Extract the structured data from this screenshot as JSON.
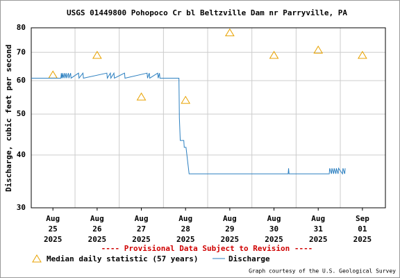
{
  "chart_data": {
    "type": "line",
    "title": "USGS 01449800 Pohopoco Cr bl Beltzville Dam nr Parryville, PA",
    "y_label": "Discharge, cubic feet per second",
    "annotation": "---- Provisional Data Subject to Revision ----",
    "credit": "Graph courtesy of the U.S. Geological Survey",
    "log_y": true,
    "grid": true,
    "ylim": [
      30,
      80
    ],
    "yticks": [
      30,
      40,
      50,
      60,
      70,
      80
    ],
    "xlim": [
      -0.49,
      7.52
    ],
    "xticks": [
      {
        "value": 0,
        "label": "Aug 25 2025"
      },
      {
        "value": 1,
        "label": "Aug 26 2025"
      },
      {
        "value": 2,
        "label": "Aug 27 2025"
      },
      {
        "value": 3,
        "label": "Aug 28 2025"
      },
      {
        "value": 4,
        "label": "Aug 29 2025"
      },
      {
        "value": 5,
        "label": "Aug 30 2025"
      },
      {
        "value": 6,
        "label": "Aug 31 2025"
      },
      {
        "value": 7,
        "label": "Sep 01 2025"
      }
    ],
    "series": [
      {
        "name": "Median daily statistic (57 years)",
        "color": "#e8a200",
        "kind": "triangle",
        "x": [
          0,
          1,
          2,
          3,
          4,
          5,
          6,
          7
        ],
        "values": [
          62,
          69,
          55,
          54,
          78,
          69,
          71,
          69
        ]
      },
      {
        "name": "Discharge",
        "color": "#2b7fc0",
        "kind": "line",
        "x": [
          -0.49,
          0.18,
          0.19,
          0.2,
          0.22,
          0.23,
          0.26,
          0.27,
          0.3,
          0.31,
          0.35,
          0.36,
          0.4,
          0.41,
          0.58,
          0.59,
          0.68,
          0.69,
          1.22,
          1.23,
          1.3,
          1.31,
          1.38,
          1.39,
          1.62,
          1.63,
          2.13,
          2.14,
          2.18,
          2.19,
          2.37,
          2.38,
          2.41,
          2.42,
          2.85,
          2.86,
          2.88,
          2.96,
          2.97,
          3.01,
          3.08,
          5.32,
          5.33,
          5.34,
          6.25,
          6.26,
          6.3,
          6.31,
          6.35,
          6.36,
          6.4,
          6.41,
          6.45,
          6.46,
          6.55,
          6.56,
          6.6,
          6.61
        ],
        "values": [
          60.8,
          60.8,
          62.5,
          60.8,
          62.5,
          60.8,
          62.5,
          60.8,
          62.5,
          60.8,
          62.5,
          60.8,
          62.5,
          60.8,
          62.5,
          60.8,
          62.5,
          60.8,
          62.5,
          60.8,
          62.5,
          60.8,
          62.5,
          60.8,
          62.5,
          60.8,
          62.5,
          60.8,
          62.5,
          60.8,
          62.5,
          60.8,
          62.5,
          60.8,
          60.8,
          49.0,
          43.3,
          43.3,
          41.7,
          41.7,
          36.1,
          36.1,
          37.2,
          36.1,
          36.1,
          37.2,
          36.1,
          37.2,
          36.1,
          37.2,
          36.1,
          37.2,
          36.1,
          37.2,
          36.1,
          37.2,
          36.1,
          37.2
        ]
      }
    ]
  }
}
